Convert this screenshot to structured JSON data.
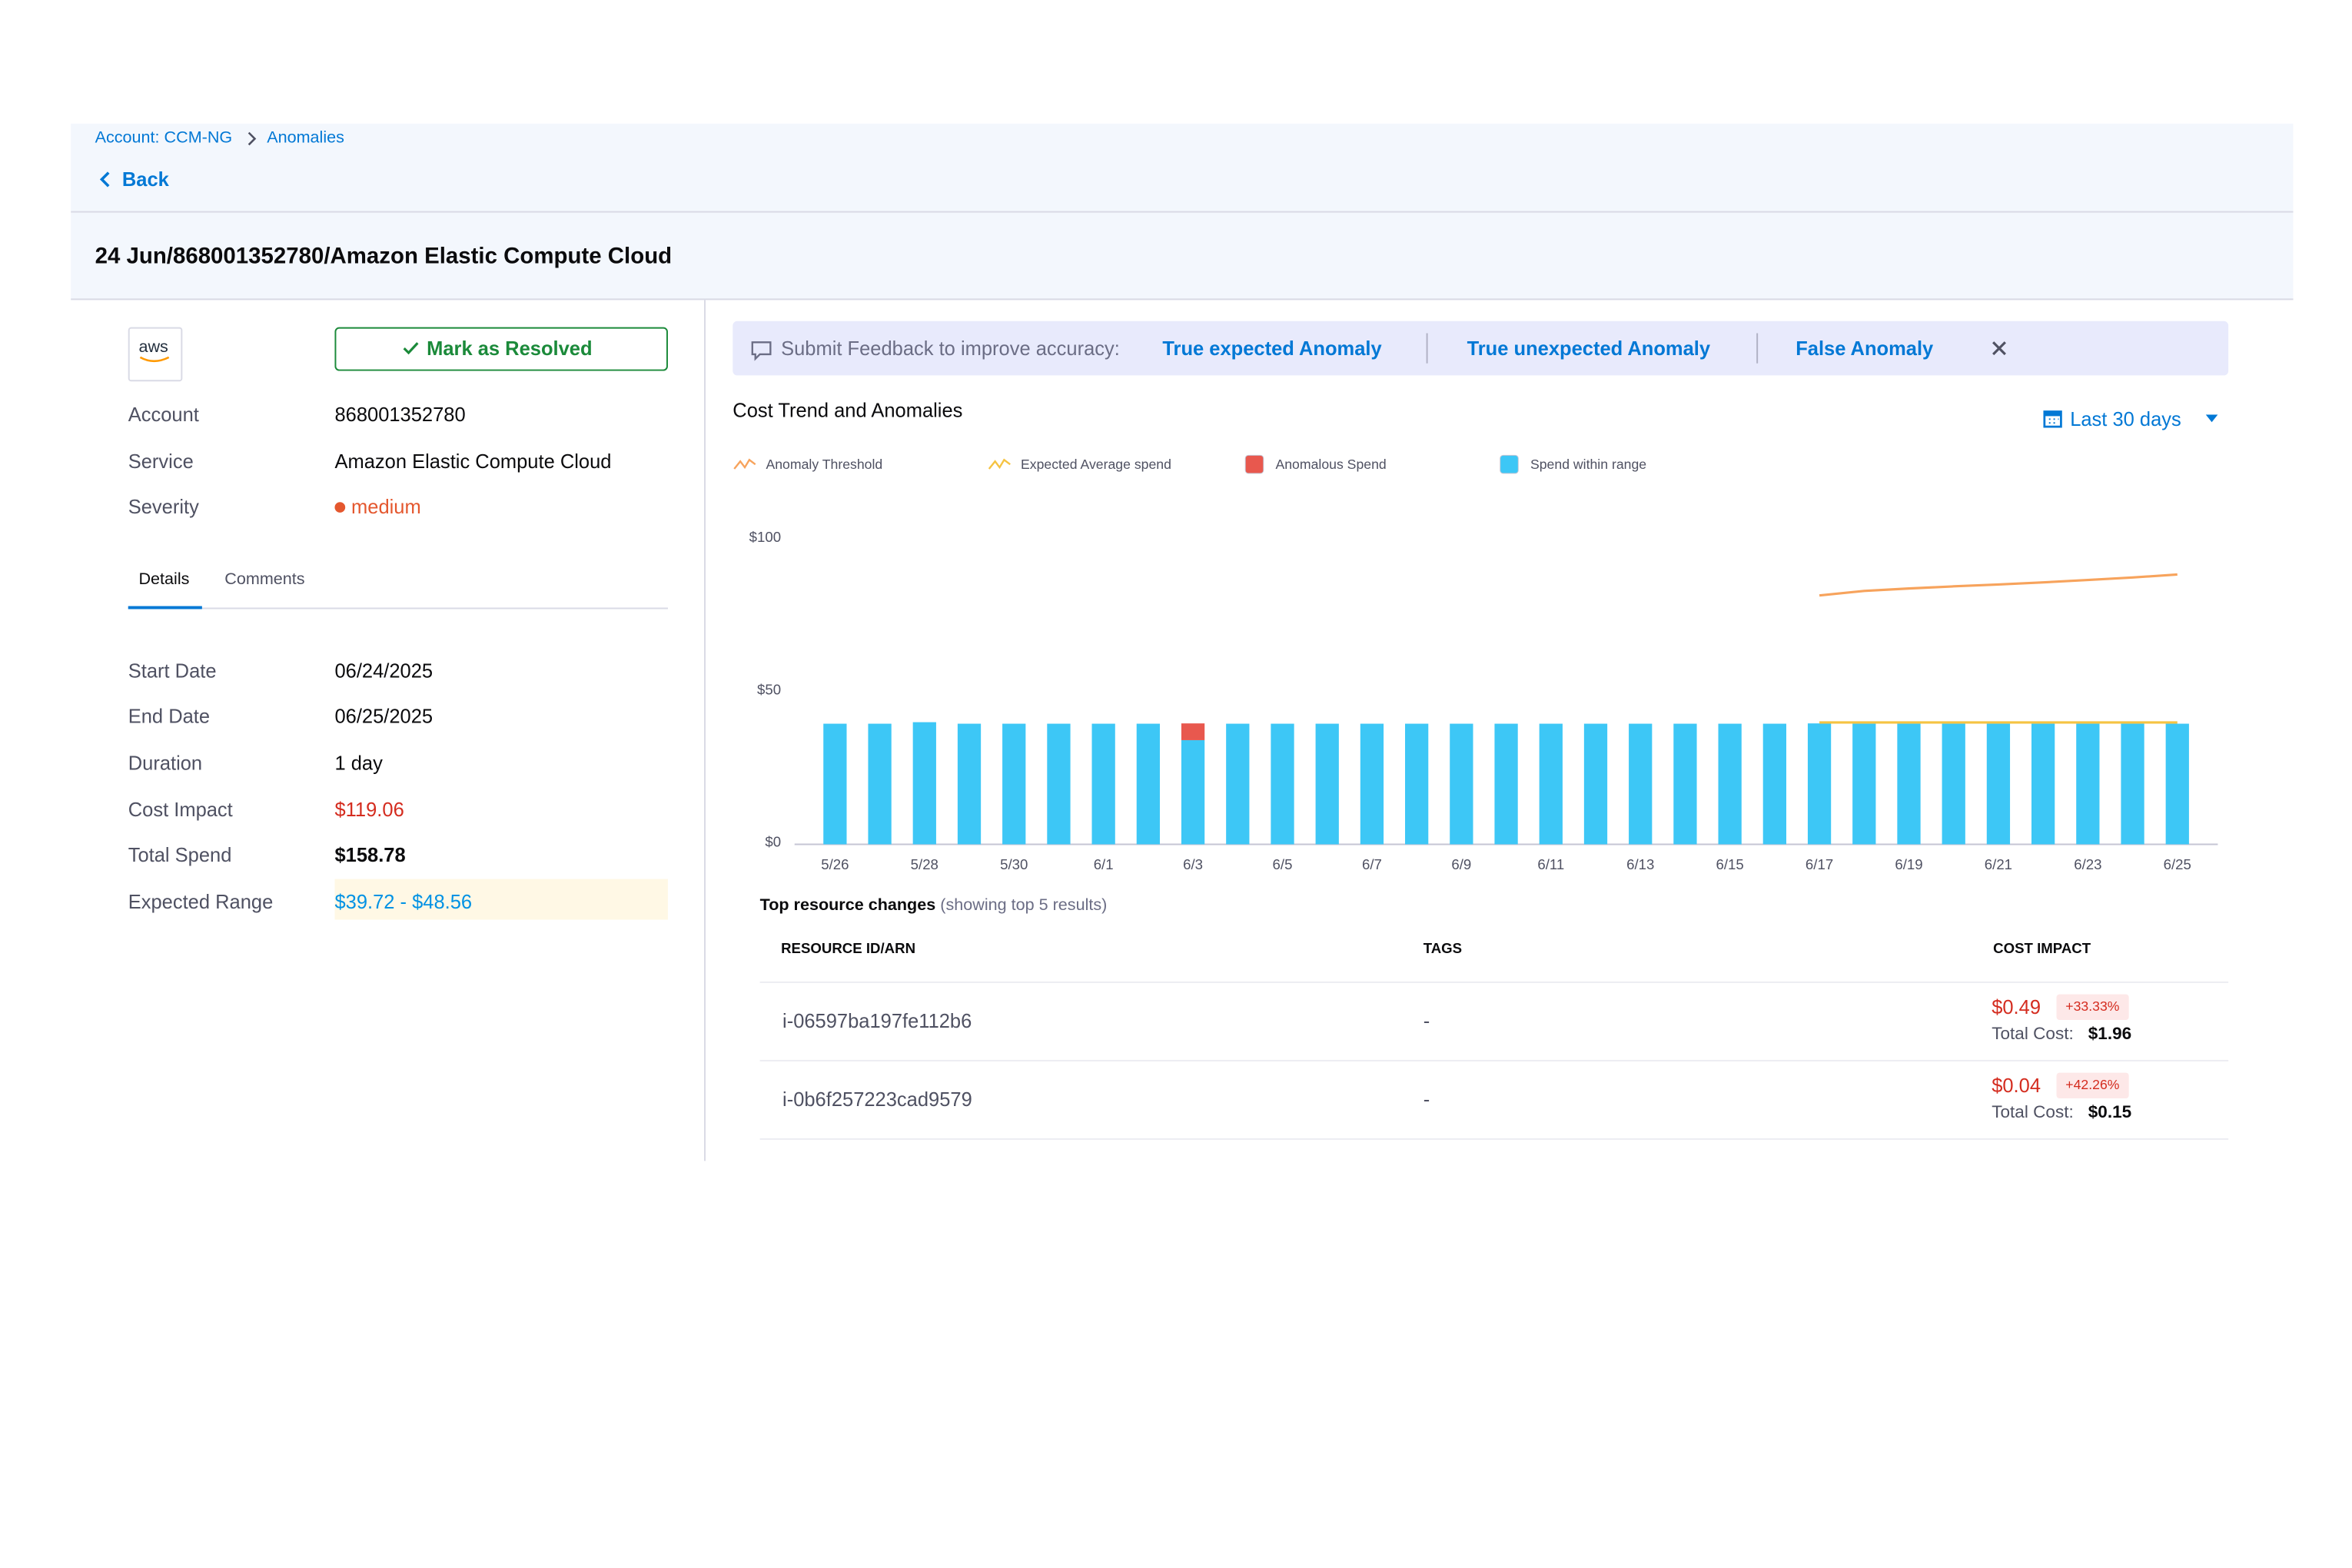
{
  "breadcrumb": {
    "account": "Account: CCM-NG",
    "page": "Anomalies"
  },
  "back": "Back",
  "title": "24 Jun/868001352780/Amazon Elastic Compute Cloud",
  "logo": "aws",
  "resolve_button": "Mark as Resolved",
  "summary": [
    {
      "label": "Account",
      "value": "868001352780"
    },
    {
      "label": "Service",
      "value": "Amazon Elastic Compute Cloud"
    },
    {
      "label": "Severity",
      "value": "medium"
    }
  ],
  "tabs": [
    "Details",
    "Comments"
  ],
  "details": [
    {
      "label": "Start Date",
      "value": "06/24/2025"
    },
    {
      "label": "End Date",
      "value": "06/25/2025"
    },
    {
      "label": "Duration",
      "value": "1 day"
    },
    {
      "label": "Cost Impact",
      "value": "$119.06"
    },
    {
      "label": "Total Spend",
      "value": "$158.78"
    },
    {
      "label": "Expected Range",
      "value": "$39.72 - $48.56"
    }
  ],
  "feedback": {
    "prompt": "Submit Feedback to improve accuracy:",
    "options": [
      "True expected Anomaly",
      "True unexpected Anomaly",
      "False Anomaly"
    ]
  },
  "range_picker": "Last 30 days",
  "chart_data": {
    "type": "bar",
    "title": "Cost Trend and Anomalies",
    "categories": [
      "5/26",
      null,
      "5/28",
      null,
      "5/30",
      null,
      "6/1",
      null,
      "6/3",
      null,
      "6/5",
      null,
      "6/7",
      null,
      "6/9",
      null,
      "6/11",
      null,
      "6/13",
      null,
      "6/15",
      null,
      "6/17",
      null,
      "6/19",
      null,
      "6/21",
      null,
      "6/23",
      null,
      "6/25"
    ],
    "series": [
      {
        "name": "Anomaly Threshold",
        "type": "line",
        "color": "#f7a35c",
        "values": [
          null,
          null,
          null,
          null,
          null,
          null,
          null,
          null,
          null,
          null,
          null,
          null,
          null,
          null,
          null,
          null,
          null,
          null,
          null,
          null,
          null,
          null,
          81.7,
          83.2,
          84.0,
          84.7,
          85.3,
          86.0,
          86.8,
          87.6,
          88.6
        ]
      },
      {
        "name": "Expected Average spend",
        "type": "line",
        "color": "#f5c342",
        "values": [
          null,
          null,
          null,
          null,
          null,
          null,
          null,
          null,
          null,
          null,
          null,
          null,
          null,
          null,
          null,
          null,
          null,
          null,
          null,
          null,
          null,
          null,
          40,
          40,
          40,
          40,
          40,
          40,
          40,
          40,
          40
        ]
      },
      {
        "name": "Anomalous Spend",
        "type": "bar",
        "color": "#e8584e",
        "values": [
          null,
          null,
          null,
          null,
          null,
          null,
          null,
          null,
          5.5,
          null,
          null,
          null,
          null,
          null,
          null,
          null,
          null,
          null,
          null,
          null,
          null,
          null,
          null,
          null,
          null,
          null,
          null,
          null,
          null,
          null,
          null
        ]
      },
      {
        "name": "Spend within range",
        "type": "bar",
        "color": "#3dc7f6",
        "values": [
          39.6,
          39.6,
          40.1,
          39.6,
          39.6,
          39.6,
          39.6,
          39.6,
          34.2,
          39.6,
          39.6,
          39.6,
          39.6,
          39.6,
          39.6,
          39.6,
          39.6,
          39.6,
          39.6,
          39.6,
          39.6,
          39.6,
          39.7,
          39.6,
          39.6,
          39.6,
          39.6,
          39.6,
          39.6,
          39.6,
          39.6
        ]
      }
    ],
    "ylim": [
      0,
      100
    ],
    "yticks": [
      {
        "value": 0,
        "label": "$0"
      },
      {
        "value": 50,
        "label": "$50"
      },
      {
        "value": 100,
        "label": "$100"
      }
    ],
    "grid": false
  },
  "table": {
    "title": "Top resource changes",
    "subtitle": "(showing top 5 results)",
    "headers": [
      "RESOURCE ID/ARN",
      "TAGS",
      "COST IMPACT"
    ],
    "rows": [
      {
        "resource": "i-06597ba197fe112b6",
        "tags": "-",
        "cost": "$0.49",
        "change": "+33.33%",
        "total_label": "Total Cost:",
        "total": "$1.96"
      },
      {
        "resource": "i-0b6f257223cad9579",
        "tags": "-",
        "cost": "$0.04",
        "change": "+42.26%",
        "total_label": "Total Cost:",
        "total": "$0.15"
      }
    ]
  }
}
